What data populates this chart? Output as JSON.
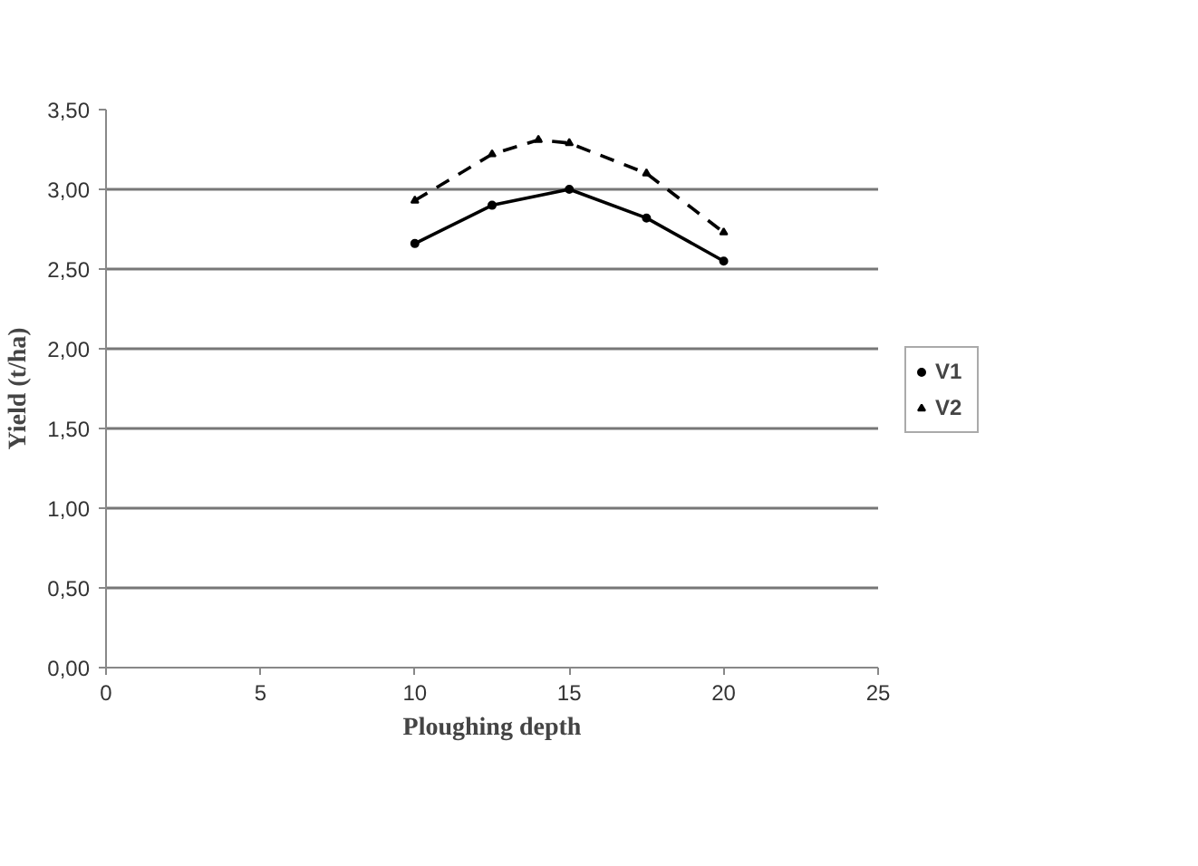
{
  "chart_data": {
    "type": "line",
    "xlabel": "Ploughing depth",
    "ylabel": "Yield (t/ha)",
    "xlim": [
      0,
      25
    ],
    "xticks": [
      0,
      5,
      10,
      15,
      20,
      25
    ],
    "ylim": [
      0,
      3.5
    ],
    "yticks": [
      {
        "value": 0,
        "label": "0,00"
      },
      {
        "value": 0.5,
        "label": "0,50"
      },
      {
        "value": 1,
        "label": "1,00"
      },
      {
        "value": 1.5,
        "label": "1,50"
      },
      {
        "value": 2,
        "label": "2,00"
      },
      {
        "value": 2.5,
        "label": "2,50"
      },
      {
        "value": 3,
        "label": "3,00"
      },
      {
        "value": 3.5,
        "label": "3,50"
      }
    ],
    "grid": "y",
    "legend": "right",
    "series": [
      {
        "name": "V1",
        "color": "#000000",
        "marker": "circle",
        "line_style": "solid",
        "x": [
          10,
          12.5,
          15,
          17.5,
          20
        ],
        "values": [
          2.66,
          2.9,
          3.0,
          2.82,
          2.55
        ]
      },
      {
        "name": "V2",
        "color": "#000000",
        "marker": "triangle",
        "line_style": "dashed",
        "x": [
          10,
          12.5,
          14,
          15,
          17.5,
          20
        ],
        "values": [
          2.93,
          3.22,
          3.31,
          3.29,
          3.1,
          2.73
        ]
      }
    ]
  }
}
